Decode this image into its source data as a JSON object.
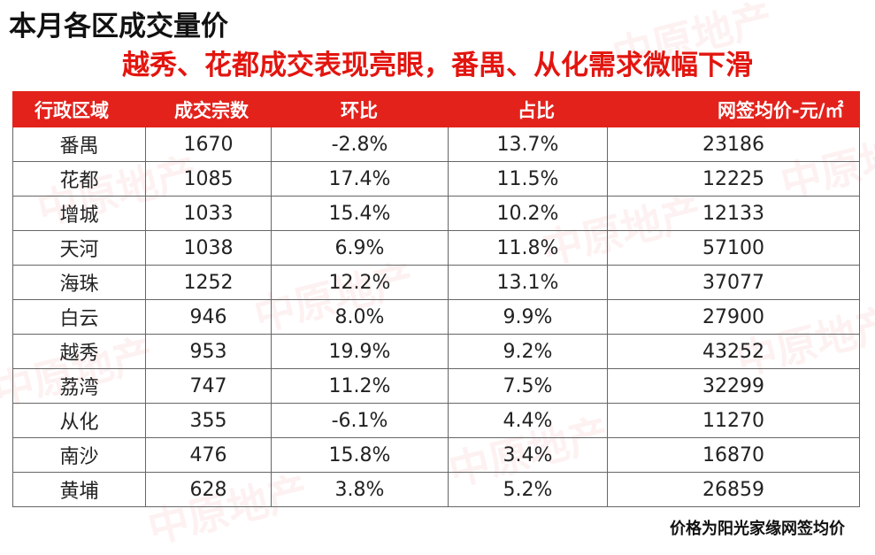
{
  "title": "本月各区成交量价",
  "subtitle": "越秀、花都成交表现亮眼，番禺、从化需求微幅下滑",
  "note": "价格为阳光家缘网签均价",
  "watermark": "中原地产",
  "colors": {
    "header_bg": "#e3221c",
    "subtitle": "#e3150f"
  },
  "chart_data": {
    "type": "table",
    "columns": [
      "行政区域",
      "成交宗数",
      "环比",
      "占比",
      "网签均价-元/㎡"
    ],
    "rows": [
      [
        "番禺",
        "1670",
        "-2.8%",
        "13.7%",
        "23186"
      ],
      [
        "花都",
        "1085",
        "17.4%",
        "11.5%",
        "12225"
      ],
      [
        "增城",
        "1033",
        "15.4%",
        "10.2%",
        "12133"
      ],
      [
        "天河",
        "1038",
        "6.9%",
        "11.8%",
        "57100"
      ],
      [
        "海珠",
        "1252",
        "12.2%",
        "13.1%",
        "37077"
      ],
      [
        "白云",
        "946",
        "8.0%",
        "9.9%",
        "27900"
      ],
      [
        "越秀",
        "953",
        "19.9%",
        "9.2%",
        "43252"
      ],
      [
        "荔湾",
        "747",
        "11.2%",
        "7.5%",
        "32299"
      ],
      [
        "从化",
        "355",
        "-6.1%",
        "4.4%",
        "11270"
      ],
      [
        "南沙",
        "476",
        "15.8%",
        "3.4%",
        "16870"
      ],
      [
        "黄埔",
        "628",
        "3.8%",
        "5.2%",
        "26859"
      ]
    ]
  }
}
